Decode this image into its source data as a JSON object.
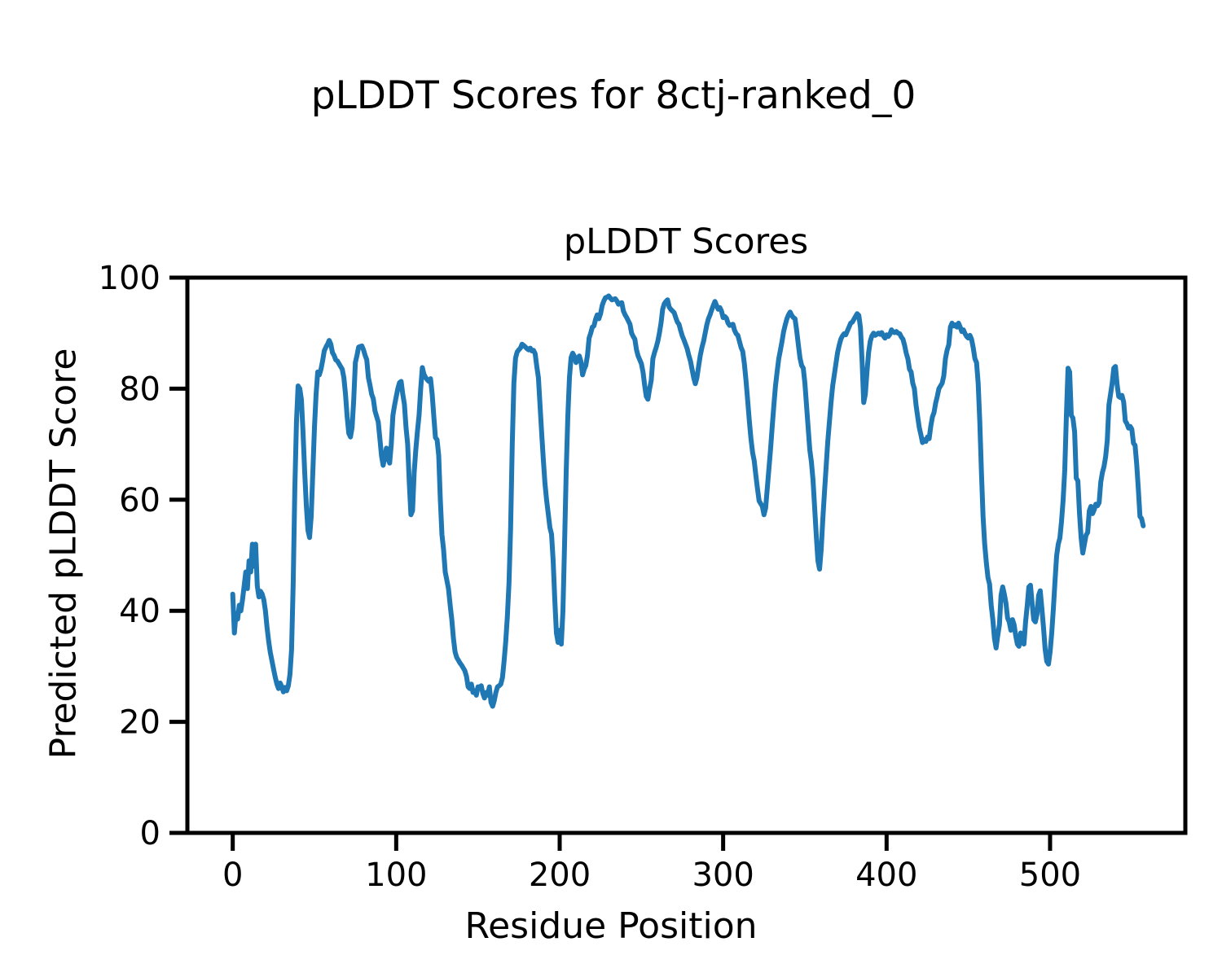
{
  "figure": {
    "suptitle": "pLDDT Scores for 8ctj-ranked_0",
    "background_color": "#ffffff",
    "text_color": "#000000"
  },
  "chart_data": {
    "type": "line",
    "title": "pLDDT Scores",
    "xlabel": "Residue Position",
    "ylabel": "Predicted pLDDT Score",
    "xlim": [
      -27.75,
      582.75
    ],
    "ylim": [
      0,
      100
    ],
    "xticks": [
      0,
      100,
      200,
      300,
      400,
      500
    ],
    "yticks": [
      0,
      20,
      40,
      60,
      80,
      100
    ],
    "grid": false,
    "legend_position": "none",
    "line_color": "#1f77b4",
    "line_width": 6,
    "series": [
      {
        "name": "pLDDT",
        "x_start": 0,
        "x_step": 1,
        "values": [
          43,
          36,
          39.5,
          38.5,
          41,
          40,
          42,
          44.5,
          47,
          44,
          49,
          47,
          52,
          48,
          52,
          44.5,
          42.5,
          43.5,
          43,
          42,
          40,
          37,
          34.5,
          32.5,
          31,
          29.5,
          28,
          26.8,
          26,
          27,
          26.3,
          25.4,
          26.2,
          25.6,
          26.5,
          28.5,
          33,
          45,
          62,
          74,
          80.5,
          80,
          78,
          72,
          65,
          59,
          54.5,
          53.2,
          57,
          65,
          73,
          79,
          83,
          82.5,
          83.5,
          85,
          86.8,
          87.5,
          88,
          88.7,
          88,
          86.5,
          86,
          85.2,
          85,
          84.5,
          84,
          83.5,
          82,
          79,
          75,
          72,
          71.3,
          73,
          78,
          84.7,
          86,
          87.5,
          87.6,
          87.7,
          87,
          86,
          85.2,
          82,
          80.6,
          79,
          78.2,
          76,
          75,
          74,
          71,
          67.9,
          66.2,
          67.5,
          69.3,
          67.5,
          66.6,
          70,
          75.2,
          77,
          78.5,
          80,
          81.1,
          81.3,
          79,
          77.2,
          73,
          70,
          63,
          57.3,
          58,
          64.9,
          69,
          72.3,
          75.2,
          80,
          83.8,
          82.6,
          82,
          81.6,
          81.3,
          81.8,
          79,
          75,
          71.2,
          70.8,
          68,
          60,
          53.7,
          51,
          47,
          45.5,
          44,
          41,
          38.4,
          35,
          32.6,
          31.6,
          31.1,
          30.6,
          30.2,
          29.7,
          29.2,
          28.2,
          26.3,
          26,
          26.8,
          25.3,
          25.6,
          24.8,
          26.3,
          26.2,
          26.5,
          25.1,
          24.3,
          25.3,
          24.8,
          26.3,
          23.5,
          22.8,
          23.8,
          25.3,
          26.3,
          26.5,
          26.8,
          28,
          31,
          34.5,
          39,
          45,
          55,
          70,
          81,
          85.5,
          86.6,
          87,
          87.3,
          88,
          87.8,
          87.5,
          87.2,
          87,
          87.3,
          86.8,
          86.9,
          86.3,
          84,
          82,
          77,
          72,
          67.3,
          63,
          60,
          57.6,
          55,
          53.8,
          49,
          42,
          36,
          34.3,
          36.5,
          34,
          40,
          52,
          65,
          75,
          82,
          85.6,
          86.4,
          85.8,
          84.7,
          85.3,
          85.9,
          84.9,
          82.5,
          83.5,
          84.2,
          86,
          89.1,
          90,
          91.1,
          91.3,
          92.5,
          93.3,
          92.6,
          93.5,
          95,
          95.8,
          96.4,
          96.5,
          96.7,
          96.3,
          96,
          96.1,
          96.2,
          95.8,
          95.2,
          95.4,
          95.5,
          94,
          93.3,
          92.8,
          92.2,
          91.6,
          90,
          89.4,
          88.9,
          87,
          85.9,
          85.2,
          84.5,
          83,
          80.6,
          78.6,
          78.1,
          80,
          81.5,
          85.4,
          86.5,
          87.4,
          88.5,
          90,
          91.8,
          94.3,
          95.3,
          95.7,
          96,
          94.7,
          94.3,
          94,
          93.7,
          92.8,
          92,
          91.6,
          90.5,
          89.5,
          88.8,
          88,
          87.2,
          86,
          85,
          83.5,
          82,
          80.9,
          82,
          84,
          86,
          87.4,
          88.5,
          90,
          91.5,
          92.6,
          93.3,
          94.2,
          95,
          95.7,
          95,
          94.3,
          94.6,
          94,
          92.8,
          93,
          92.7,
          91.8,
          91.4,
          91.5,
          91.6,
          90.5,
          89.9,
          89.6,
          88.5,
          87.4,
          86.7,
          84.5,
          81.5,
          78,
          74.2,
          71,
          68.5,
          67,
          64.4,
          62,
          59.8,
          59.3,
          58.8,
          57.3,
          58.5,
          62,
          65.5,
          69,
          73,
          77,
          80.5,
          83,
          85.4,
          86.9,
          88.5,
          90.3,
          91.5,
          92.6,
          93.3,
          93.8,
          93.2,
          92.8,
          92.6,
          90.5,
          88,
          85.5,
          84.2,
          83.7,
          81,
          77,
          73,
          69,
          66.8,
          63.5,
          58.5,
          53.5,
          49,
          47.5,
          51,
          56.5,
          61.5,
          66,
          70.5,
          74,
          77.5,
          80.5,
          82.5,
          84.5,
          86.5,
          87.8,
          88.9,
          89.5,
          89.9,
          89.7,
          90.4,
          91.1,
          91.8,
          92,
          92.5,
          93,
          93.5,
          93.2,
          91,
          85,
          77.5,
          79,
          83,
          86.5,
          88.5,
          89.5,
          90,
          89.6,
          89.8,
          90,
          89.8,
          90.1,
          89.5,
          89.1,
          89.7,
          89.4,
          89.8,
          90.6,
          90.2,
          90.1,
          90.3,
          90,
          89.9,
          89.3,
          88.9,
          87.8,
          86.4,
          85.4,
          83.5,
          83,
          81,
          80,
          77.1,
          75,
          73,
          71.7,
          70.3,
          70.8,
          70.5,
          71.3,
          71,
          73.2,
          74.9,
          75.7,
          77.4,
          78.6,
          80,
          80.5,
          81,
          82.3,
          85.4,
          86.9,
          87.9,
          91.1,
          91.8,
          91.3,
          91.5,
          91.1,
          91.8,
          91.1,
          90.3,
          90.6,
          89.9,
          89.4,
          89.1,
          89.6,
          88.9,
          87.4,
          85.4,
          84.7,
          81,
          74,
          65,
          57,
          52,
          48.7,
          46,
          44.8,
          41,
          38.4,
          35,
          33.3,
          35.5,
          37.5,
          42.8,
          44.3,
          43,
          41.4,
          38.7,
          38,
          36.5,
          38.4,
          37.5,
          35.5,
          34,
          33.6,
          36,
          34.3,
          34,
          38,
          40.9,
          44.3,
          44.6,
          41.4,
          38.4,
          38,
          39.4,
          42.8,
          43.6,
          40.4,
          37,
          33.1,
          30.9,
          30.4,
          32.6,
          36,
          40.4,
          45.3,
          49.9,
          52,
          53.1,
          56.1,
          60,
          65.4,
          75.2,
          83.7,
          83,
          75.2,
          74.7,
          72.2,
          63.9,
          63.4,
          57.5,
          53.1,
          50.4,
          52,
          53.6,
          54.1,
          58,
          58.8,
          57.5,
          58.2,
          59.2,
          58.9,
          59.5,
          63.2,
          64.9,
          66,
          67.8,
          70.7,
          77.1,
          79,
          81,
          83.7,
          84,
          80.8,
          78.6,
          78.4,
          78.8,
          77.6,
          74.2,
          73.7,
          72.9,
          73.2,
          72.7,
          70.2,
          69.8,
          66.4,
          61.9,
          57,
          56.6,
          55.3
        ]
      }
    ]
  }
}
